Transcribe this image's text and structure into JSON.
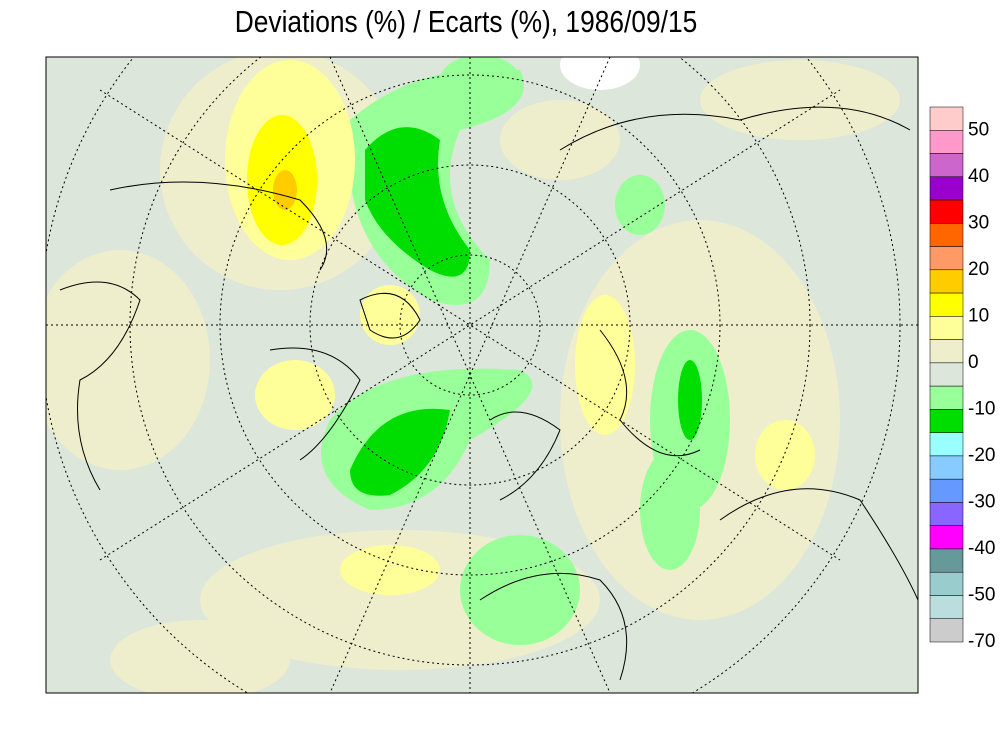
{
  "title": "Deviations (%) / Ecarts (%), 1986/09/15",
  "legend": {
    "colors": [
      "#ffcccc",
      "#ff99cc",
      "#cc66cc",
      "#9900cc",
      "#ff0000",
      "#ff6600",
      "#ff9966",
      "#ffcc00",
      "#ffff00",
      "#ffff99",
      "#eeeecc",
      "#dce6da",
      "#99ff99",
      "#00dd00",
      "#99ffff",
      "#88ccff",
      "#6699ff",
      "#8866ff",
      "#ff00ff",
      "#669999",
      "#99cccc",
      "#bbdddd",
      "#cccccc"
    ],
    "labels": [
      50,
      40,
      30,
      20,
      10,
      0,
      -10,
      -20,
      -30,
      -40,
      -50,
      -70
    ]
  }
}
